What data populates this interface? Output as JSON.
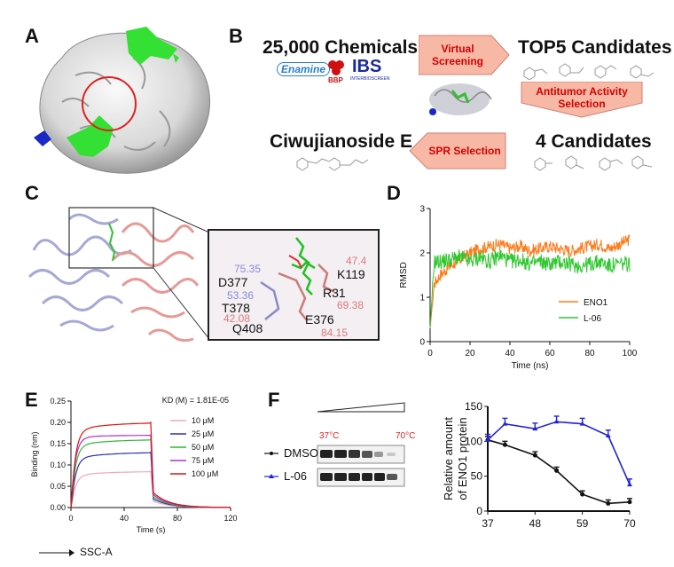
{
  "panels": {
    "a": "A",
    "b": "B",
    "c": "C",
    "d": "D",
    "e": "E",
    "f": "F"
  },
  "panel_b": {
    "chemicals": "25,000 Chemicals",
    "vendor1": "Enamine",
    "vendor2": "BBP",
    "vendor3": "IBS",
    "vendor3_sub": "INTERBIOSCREEN",
    "virtual_screening": "Virtual Screening",
    "top5": "TOP5 Candidates",
    "antitumor": "Antitumor Activity Selection",
    "four_candidates": "4 Candidates",
    "spr": "SPR Selection",
    "compound": "Ciwujianoside E"
  },
  "panel_c": {
    "residues": [
      {
        "name": "D377",
        "value": "75.35"
      },
      {
        "name": "T378",
        "value": "53.36"
      },
      {
        "name": "Q408",
        "value": "42.08"
      },
      {
        "name": "K119",
        "value": "47.4"
      },
      {
        "name": "R31",
        "value": "69.38"
      },
      {
        "name": "E376",
        "value": "84.15"
      }
    ]
  },
  "chart_data": [
    {
      "panel": "D",
      "type": "line",
      "title": "",
      "xlabel": "Time (ns)",
      "ylabel": "RMSD",
      "xlim": [
        0,
        100
      ],
      "ylim": [
        0,
        3
      ],
      "xticks": [
        0,
        20,
        40,
        60,
        80,
        100
      ],
      "yticks": [
        0,
        1,
        2,
        3
      ],
      "series": [
        {
          "name": "ENO1",
          "color": "#ff7a1a",
          "x": [
            0,
            2,
            5,
            10,
            15,
            20,
            25,
            30,
            35,
            40,
            45,
            50,
            55,
            60,
            65,
            70,
            75,
            80,
            85,
            90,
            95,
            100
          ],
          "y": [
            0.3,
            1.3,
            1.5,
            1.7,
            1.85,
            2.0,
            2.1,
            2.15,
            2.2,
            2.1,
            2.15,
            2.05,
            2.1,
            2.15,
            2.1,
            2.05,
            2.1,
            2.15,
            2.2,
            2.1,
            2.2,
            2.3
          ]
        },
        {
          "name": "L-06",
          "color": "#2ec82e",
          "x": [
            0,
            2,
            5,
            10,
            15,
            20,
            25,
            30,
            35,
            40,
            45,
            50,
            55,
            60,
            65,
            70,
            75,
            80,
            85,
            90,
            95,
            100
          ],
          "y": [
            0.3,
            1.8,
            1.8,
            1.85,
            1.9,
            1.8,
            1.9,
            1.8,
            1.95,
            1.8,
            1.85,
            1.75,
            1.8,
            1.75,
            1.8,
            1.75,
            1.7,
            1.75,
            1.8,
            1.7,
            1.75,
            1.75
          ]
        }
      ]
    },
    {
      "panel": "E",
      "type": "line",
      "title": "KD (M) = 1.81E-05",
      "xlabel": "Time (s)",
      "ylabel": "Binding (nm)",
      "xlim": [
        0,
        120
      ],
      "ylim": [
        0,
        0.25
      ],
      "xticks": [
        0,
        40,
        80,
        120
      ],
      "yticks": [
        0.0,
        0.05,
        0.1,
        0.15,
        0.2,
        0.25
      ],
      "series": [
        {
          "name": "10 μM",
          "color": "#f4a6b6",
          "x": [
            0,
            5,
            60,
            62,
            70,
            120
          ],
          "y": [
            0,
            0.075,
            0.085,
            0.015,
            0.01,
            0.0
          ]
        },
        {
          "name": "25 μM",
          "color": "#2f2fbf",
          "x": [
            0,
            5,
            60,
            62,
            70,
            120
          ],
          "y": [
            0,
            0.115,
            0.13,
            0.02,
            0.012,
            0.0
          ]
        },
        {
          "name": "50 μM",
          "color": "#2fb82f",
          "x": [
            0,
            5,
            60,
            62,
            70,
            120
          ],
          "y": [
            0,
            0.145,
            0.16,
            0.025,
            0.014,
            0.0
          ]
        },
        {
          "name": "75 μM",
          "color": "#b030d0",
          "x": [
            0,
            5,
            60,
            62,
            70,
            120
          ],
          "y": [
            0,
            0.165,
            0.17,
            0.03,
            0.015,
            0.0
          ]
        },
        {
          "name": "100 μM",
          "color": "#e01010",
          "x": [
            0,
            5,
            60,
            62,
            70,
            120
          ],
          "y": [
            0,
            0.18,
            0.2,
            0.035,
            0.016,
            0.0
          ]
        }
      ]
    },
    {
      "panel": "F",
      "type": "line",
      "title": "",
      "xlabel": "",
      "ylabel": "Relative amount of ENO1 protein",
      "xlim": [
        37,
        70
      ],
      "ylim": [
        0,
        150
      ],
      "xticks": [
        37,
        48,
        59,
        70
      ],
      "yticks": [
        0,
        50,
        100,
        150
      ],
      "series": [
        {
          "name": "DMSO",
          "color": "#111111",
          "x": [
            37,
            41,
            48,
            53,
            59,
            65,
            70
          ],
          "y": [
            102,
            95,
            80,
            58,
            24,
            11,
            13
          ]
        },
        {
          "name": "L-06",
          "color": "#2222dd",
          "x": [
            37,
            41,
            48,
            53,
            59,
            65,
            70
          ],
          "y": [
            102,
            125,
            118,
            128,
            125,
            108,
            38
          ]
        }
      ]
    }
  ],
  "panel_e_extra": {
    "kd": "KD (M) = 1.81E-05"
  },
  "panel_f": {
    "temp_low": "37°C",
    "temp_high": "70°C",
    "dmso": "DMSO",
    "l06": "L-06",
    "axis_l1": "Relative amount",
    "axis_l2": "of ENO1 protein"
  },
  "footer": {
    "ssc": "SSC-A"
  }
}
